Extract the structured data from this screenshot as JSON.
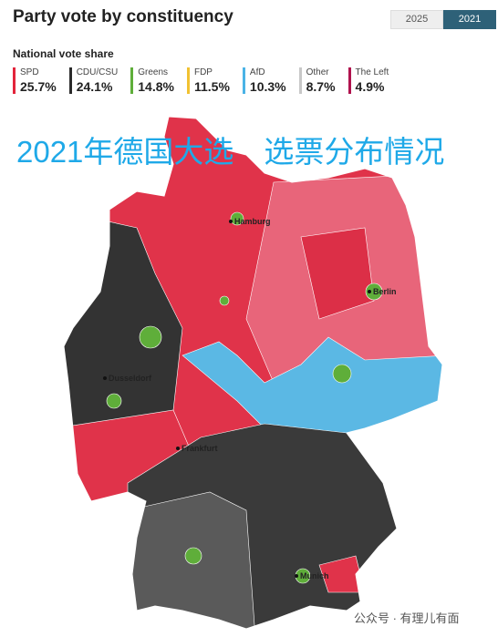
{
  "header": {
    "title": "Party vote by constituency",
    "years": [
      "2025",
      "2021"
    ]
  },
  "legend": {
    "title": "National vote share",
    "items": [
      {
        "name": "SPD",
        "share": "25.7%",
        "color": "#e3243b"
      },
      {
        "name": "CDU/CSU",
        "share": "24.1%",
        "color": "#2b2b2b"
      },
      {
        "name": "Greens",
        "share": "14.8%",
        "color": "#5fae3a"
      },
      {
        "name": "FDP",
        "share": "11.5%",
        "color": "#f1c232"
      },
      {
        "name": "AfD",
        "share": "10.3%",
        "color": "#4ab3e6"
      },
      {
        "name": "Other",
        "share": "8.7%",
        "color": "#c8c8c8"
      },
      {
        "name": "The Left",
        "share": "4.9%",
        "color": "#b0124d"
      }
    ]
  },
  "overlay_title": "2021年德国大选　选票分布情况",
  "cities": [
    "Hamburg",
    "Berlin",
    "Dusseldorf",
    "Frankfurt",
    "Munich"
  ],
  "watermark": "公众号 · 有理儿有面"
}
